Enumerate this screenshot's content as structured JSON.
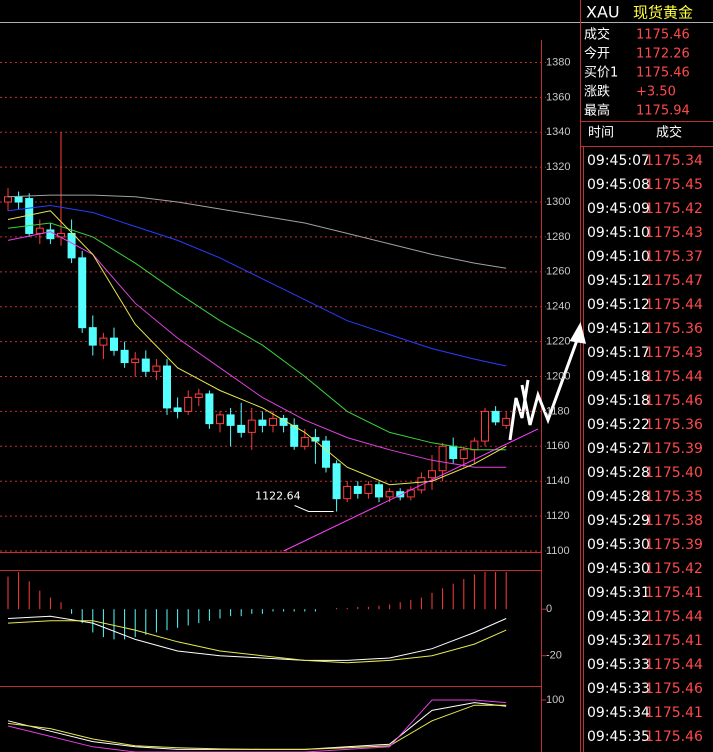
{
  "header": {
    "symbol": "XAU",
    "name": "现货黄金"
  },
  "quote": {
    "rows": [
      [
        "成交",
        "1175.46"
      ],
      [
        "今开",
        "1172.26"
      ],
      [
        "买价1",
        "1175.46"
      ],
      [
        "涨跌",
        "+3.50"
      ],
      [
        "最高",
        "1175.94"
      ]
    ]
  },
  "ticks": {
    "columns": [
      "时间",
      "成交"
    ],
    "rows": [
      [
        "09:45:07",
        "1175.34"
      ],
      [
        "09:45:08",
        "1175.45"
      ],
      [
        "09:45:09",
        "1175.42"
      ],
      [
        "09:45:10",
        "1175.43"
      ],
      [
        "09:45:10",
        "1175.37"
      ],
      [
        "09:45:12",
        "1175.47"
      ],
      [
        "09:45:12",
        "1175.44"
      ],
      [
        "09:45:12",
        "1175.36"
      ],
      [
        "09:45:17",
        "1175.43"
      ],
      [
        "09:45:18",
        "1175.44"
      ],
      [
        "09:45:18",
        "1175.46"
      ],
      [
        "09:45:22",
        "1175.36"
      ],
      [
        "09:45:27",
        "1175.39"
      ],
      [
        "09:45:28",
        "1175.40"
      ],
      [
        "09:45:28",
        "1175.35"
      ],
      [
        "09:45:29",
        "1175.38"
      ],
      [
        "09:45:30",
        "1175.39"
      ],
      [
        "09:45:30",
        "1175.42"
      ],
      [
        "09:45:31",
        "1175.41"
      ],
      [
        "09:45:32",
        "1175.44"
      ],
      [
        "09:45:32",
        "1175.41"
      ],
      [
        "09:45:33",
        "1175.44"
      ],
      [
        "09:45:33",
        "1175.46"
      ],
      [
        "09:45:34",
        "1175.41"
      ],
      [
        "09:45:35",
        "1175.46"
      ]
    ]
  },
  "chart_data": [
    {
      "type": "candlestick",
      "up_color": "#ff3c3c",
      "down_color": "#54ffff",
      "grid": true,
      "ylim": [
        1100,
        1390
      ],
      "yticks": [
        1100,
        1120,
        1140,
        1160,
        1180,
        1200,
        1220,
        1240,
        1260,
        1280,
        1300,
        1320,
        1340,
        1360,
        1380
      ],
      "open": [
        1300,
        1303,
        1302,
        1282,
        1284,
        1280,
        1282,
        1268,
        1228,
        1218,
        1222,
        1215,
        1208,
        1210,
        1203,
        1206,
        1182,
        1180,
        1188,
        1190,
        1173,
        1178,
        1172,
        1168,
        1175,
        1172,
        1176,
        1172,
        1160,
        1165,
        1163,
        1150,
        1130,
        1137,
        1133,
        1138,
        1131,
        1134,
        1131,
        1135,
        1142,
        1146,
        1160,
        1153,
        1158,
        1163,
        1180,
        1172
      ],
      "high": [
        1308,
        1306,
        1305,
        1290,
        1288,
        1340,
        1290,
        1272,
        1235,
        1225,
        1228,
        1220,
        1214,
        1215,
        1210,
        1210,
        1188,
        1192,
        1193,
        1192,
        1180,
        1182,
        1185,
        1182,
        1180,
        1180,
        1178,
        1176,
        1170,
        1170,
        1166,
        1152,
        1140,
        1140,
        1140,
        1140,
        1136,
        1136,
        1137,
        1145,
        1155,
        1162,
        1165,
        1160,
        1165,
        1182,
        1183,
        1180
      ],
      "low": [
        1295,
        1296,
        1280,
        1276,
        1276,
        1275,
        1265,
        1225,
        1212,
        1210,
        1212,
        1205,
        1200,
        1200,
        1198,
        1178,
        1176,
        1178,
        1183,
        1170,
        1168,
        1160,
        1165,
        1158,
        1168,
        1168,
        1168,
        1158,
        1158,
        1150,
        1145,
        1122.64,
        1128,
        1130,
        1130,
        1128,
        1128,
        1129,
        1129,
        1133,
        1135,
        1140,
        1150,
        1148,
        1150,
        1160,
        1172,
        1170
      ],
      "close": [
        1303,
        1300,
        1282,
        1285,
        1279,
        1282,
        1268,
        1228,
        1218,
        1222,
        1215,
        1208,
        1210,
        1203,
        1206,
        1182,
        1180,
        1188,
        1190,
        1173,
        1178,
        1172,
        1168,
        1175,
        1172,
        1176,
        1172,
        1160,
        1165,
        1163,
        1148,
        1130,
        1137,
        1133,
        1138,
        1131,
        1134,
        1131,
        1135,
        1142,
        1146,
        1160,
        1153,
        1158,
        1163,
        1180,
        1174,
        1176
      ],
      "lines": [
        {
          "color": "#a0a0a0",
          "x": [
            0,
            4,
            8,
            12,
            16,
            20,
            24,
            28,
            32,
            36,
            40,
            44,
            47
          ],
          "values": [
            1303,
            1304,
            1304,
            1303,
            1300,
            1296,
            1292,
            1288,
            1282,
            1276,
            1270,
            1265,
            1262
          ]
        },
        {
          "color": "#2a3cff",
          "x": [
            0,
            4,
            8,
            12,
            16,
            20,
            24,
            28,
            32,
            36,
            40,
            44,
            47
          ],
          "values": [
            1295,
            1298,
            1294,
            1286,
            1278,
            1268,
            1256,
            1244,
            1232,
            1224,
            1216,
            1210,
            1206
          ]
        },
        {
          "color": "#3cd23c",
          "x": [
            0,
            4,
            8,
            12,
            16,
            20,
            24,
            28,
            32,
            36,
            40,
            44,
            47
          ],
          "values": [
            1285,
            1288,
            1280,
            1265,
            1248,
            1232,
            1218,
            1200,
            1180,
            1168,
            1162,
            1158,
            1158
          ]
        },
        {
          "color": "#e040e0",
          "x": [
            0,
            4,
            8,
            12,
            16,
            20,
            24,
            28,
            32,
            36,
            40,
            44,
            47
          ],
          "values": [
            1278,
            1283,
            1270,
            1242,
            1222,
            1205,
            1188,
            1175,
            1165,
            1158,
            1152,
            1148,
            1148
          ]
        },
        {
          "color": "#e8e850",
          "x": [
            0,
            4,
            8,
            12,
            16,
            20,
            24,
            28,
            32,
            36,
            40,
            44,
            47
          ],
          "values": [
            1290,
            1295,
            1270,
            1230,
            1205,
            1192,
            1182,
            1168,
            1148,
            1138,
            1140,
            1150,
            1160
          ]
        },
        {
          "color": "#ff40ff",
          "x": [
            26,
            50
          ],
          "values": [
            1100,
            1170
          ]
        }
      ]
    },
    {
      "type": "macd",
      "ylim": [
        -24,
        16
      ],
      "yticks": [
        -20,
        0
      ],
      "up_color": "#ff3c3c",
      "down_color": "#54ffff",
      "values": [
        14,
        16,
        12,
        8,
        5,
        3,
        -2,
        -6,
        -10,
        -12,
        -13,
        -13,
        -12,
        -11,
        -10,
        -9,
        -8,
        -7,
        -6,
        -5,
        -4,
        -3,
        -3,
        -2,
        -2,
        -1,
        -1,
        -1,
        -1,
        -1,
        0,
        0.5,
        0.5,
        1,
        1,
        1.5,
        2,
        3,
        4,
        5,
        7,
        9,
        11,
        13,
        15,
        16,
        16,
        16
      ],
      "lines": [
        {
          "color": "#ffffff",
          "x": [
            0,
            4,
            8,
            12,
            16,
            20,
            24,
            28,
            32,
            36,
            40,
            44,
            47
          ],
          "values": [
            -4,
            -3,
            -6,
            -13,
            -18,
            -20,
            -21,
            -22,
            -22,
            -21,
            -17,
            -10,
            -4
          ]
        },
        {
          "color": "#e8e850",
          "x": [
            0,
            4,
            8,
            12,
            16,
            20,
            24,
            28,
            32,
            36,
            40,
            44,
            47
          ],
          "values": [
            -6,
            -5,
            -5,
            -9,
            -14,
            -18,
            -20,
            -22,
            -23,
            -22,
            -20,
            -15,
            -9
          ]
        }
      ]
    },
    {
      "type": "kdj",
      "ylim": [
        0,
        123
      ],
      "yticks": [
        100
      ],
      "lines": [
        {
          "color": "#ffffff",
          "x": [
            0,
            4,
            8,
            12,
            16,
            20,
            24,
            28,
            32,
            36,
            40,
            44,
            47
          ],
          "values": [
            60,
            40,
            20,
            10,
            5,
            5,
            5,
            5,
            10,
            15,
            80,
            95,
            88
          ]
        },
        {
          "color": "#e8e850",
          "x": [
            0,
            4,
            8,
            12,
            16,
            20,
            24,
            28,
            32,
            36,
            40,
            44,
            47
          ],
          "values": [
            55,
            45,
            25,
            12,
            8,
            6,
            5,
            5,
            8,
            12,
            60,
            90,
            90
          ]
        },
        {
          "color": "#e040e0",
          "x": [
            0,
            4,
            8,
            12,
            16,
            20,
            24,
            28,
            32,
            36,
            40,
            44,
            47
          ],
          "values": [
            50,
            30,
            10,
            0,
            0,
            0,
            0,
            0,
            5,
            10,
            100,
            100,
            95
          ]
        }
      ]
    }
  ]
}
